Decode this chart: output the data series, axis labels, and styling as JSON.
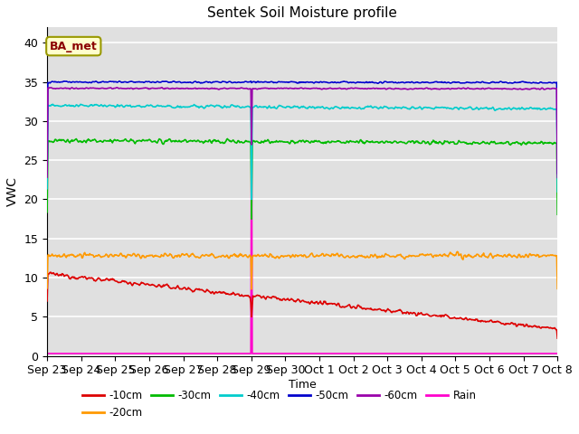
{
  "title": "Sentek Soil Moisture profile",
  "xlabel": "Time",
  "ylabel": "VWC",
  "annotation_text": "BA_met",
  "ylim": [
    0,
    42
  ],
  "x_tick_labels": [
    "Sep 23",
    "Sep 24",
    "Sep 25",
    "Sep 26",
    "Sep 27",
    "Sep 28",
    "Sep 29",
    "Sep 30",
    "Oct 1",
    "Oct 2",
    "Oct 3",
    "Oct 4",
    "Oct 5",
    "Oct 6",
    "Oct 7",
    "Oct 8"
  ],
  "background_color": "#e0e0e0",
  "grid_color": "#ffffff",
  "colors": {
    "-10cm": "#dd0000",
    "-20cm": "#ff9900",
    "-30cm": "#00bb00",
    "-40cm": "#00cccc",
    "-50cm": "#0000cc",
    "-60cm": "#9900aa",
    "Rain": "#ff00cc"
  }
}
